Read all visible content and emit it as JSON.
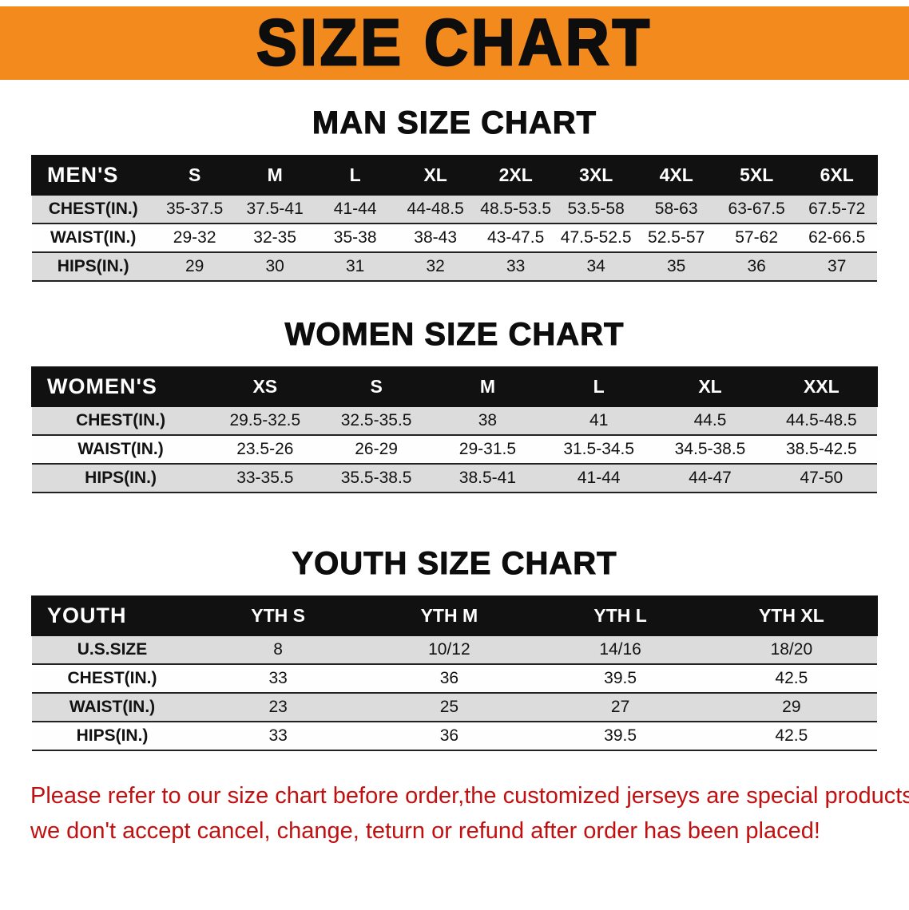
{
  "banner": {
    "title": "SIZE CHART"
  },
  "colors": {
    "banner_bg": "#f28a1e",
    "header_bg": "#111111",
    "row_alt": "#dcdcdc",
    "footer_text": "#c21010"
  },
  "sections": [
    {
      "heading": "MAN SIZE CHART",
      "table": {
        "header": [
          "MEN'S",
          "S",
          "M",
          "L",
          "XL",
          "2XL",
          "3XL",
          "4XL",
          "5XL",
          "6XL"
        ],
        "rows": [
          [
            "CHEST(IN.)",
            "35-37.5",
            "37.5-41",
            "41-44",
            "44-48.5",
            "48.5-53.5",
            "53.5-58",
            "58-63",
            "63-67.5",
            "67.5-72"
          ],
          [
            "WAIST(IN.)",
            "29-32",
            "32-35",
            "35-38",
            "38-43",
            "43-47.5",
            "47.5-52.5",
            "52.5-57",
            "57-62",
            "62-66.5"
          ],
          [
            "HIPS(IN.)",
            "29",
            "30",
            "31",
            "32",
            "33",
            "34",
            "35",
            "36",
            "37"
          ]
        ]
      }
    },
    {
      "heading": "WOMEN SIZE CHART",
      "table": {
        "header": [
          "WOMEN'S",
          "XS",
          "S",
          "M",
          "L",
          "XL",
          "XXL"
        ],
        "rows": [
          [
            "CHEST(IN.)",
            "29.5-32.5",
            "32.5-35.5",
            "38",
            "41",
            "44.5",
            "44.5-48.5"
          ],
          [
            "WAIST(IN.)",
            "23.5-26",
            "26-29",
            "29-31.5",
            "31.5-34.5",
            "34.5-38.5",
            "38.5-42.5"
          ],
          [
            "HIPS(IN.)",
            "33-35.5",
            "35.5-38.5",
            "38.5-41",
            "41-44",
            "44-47",
            "47-50"
          ]
        ]
      }
    },
    {
      "heading": "YOUTH SIZE CHART",
      "table": {
        "header": [
          "YOUTH",
          "YTH S",
          "YTH M",
          "YTH L",
          "YTH XL"
        ],
        "rows": [
          [
            "U.S.SIZE",
            "8",
            "10/12",
            "14/16",
            "18/20"
          ],
          [
            "CHEST(IN.)",
            "33",
            "36",
            "39.5",
            "42.5"
          ],
          [
            "WAIST(IN.)",
            "23",
            "25",
            "27",
            "29"
          ],
          [
            "HIPS(IN.)",
            "33",
            "36",
            "39.5",
            "42.5"
          ]
        ]
      }
    }
  ],
  "footer": {
    "line1": "Please refer to our size chart before order,the customized jerseys are special products,",
    "line2": "we don't accept cancel, change, teturn or refund after order has been placed!"
  }
}
